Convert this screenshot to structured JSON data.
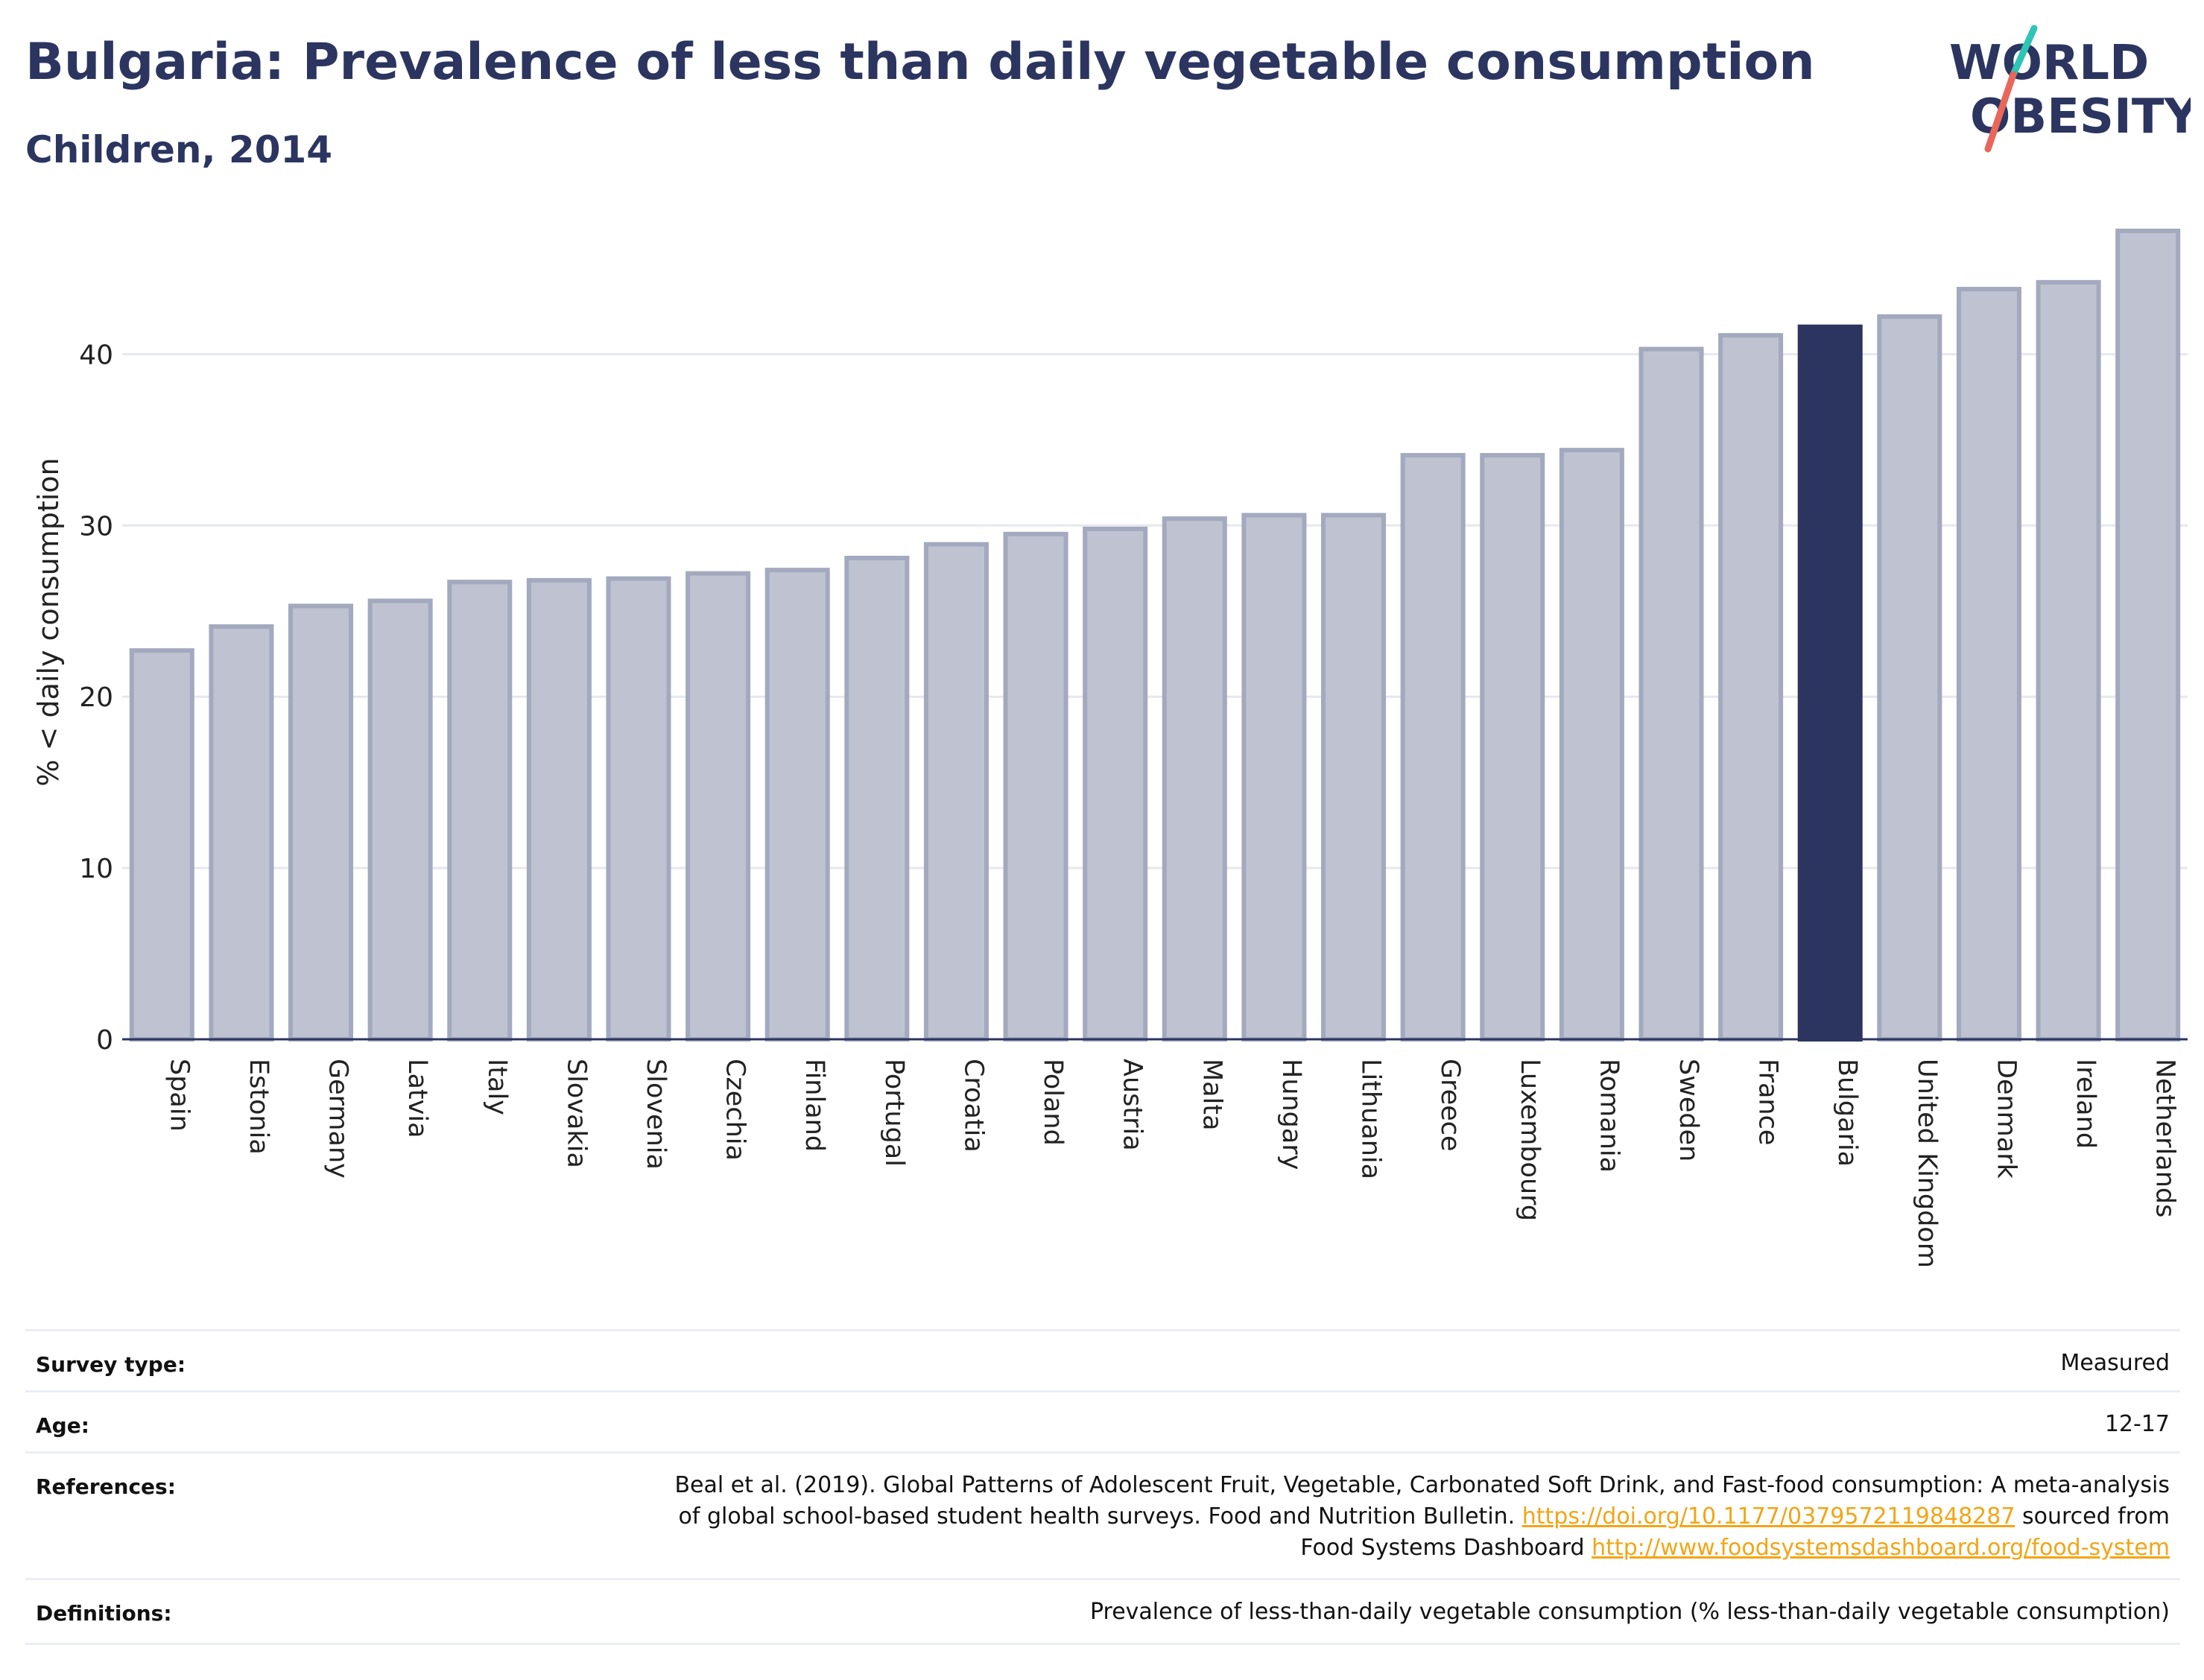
{
  "header": {
    "title": "Bulgaria: Prevalence of less than daily vegetable consumption",
    "subtitle": "Children, 2014"
  },
  "logo": {
    "line1": "WORLD",
    "line2": "OBESITY",
    "accent_colors": [
      "#2ec4b6",
      "#e8675a"
    ]
  },
  "chart_data": {
    "type": "bar",
    "title": "Bulgaria: Prevalence of less than daily vegetable consumption",
    "subtitle": "Children, 2014",
    "xlabel": "",
    "ylabel": "% < daily consumption",
    "ylim": [
      0,
      48.5
    ],
    "yticks": [
      0,
      10,
      20,
      30,
      40
    ],
    "grid": true,
    "highlight": "Bulgaria",
    "colors": {
      "bar": "#bfc2d0",
      "bar_border": "#a3a9be",
      "highlight": "#2b3560"
    },
    "categories": [
      "Spain",
      "Estonia",
      "Germany",
      "Latvia",
      "Italy",
      "Slovakia",
      "Slovenia",
      "Czechia",
      "Finland",
      "Portugal",
      "Croatia",
      "Poland",
      "Austria",
      "Malta",
      "Hungary",
      "Lithuania",
      "Greece",
      "Luxembourg",
      "Romania",
      "Sweden",
      "France",
      "Bulgaria",
      "United Kingdom",
      "Denmark",
      "Ireland",
      "Netherlands"
    ],
    "values": [
      22.7,
      24.1,
      25.3,
      25.6,
      26.7,
      26.8,
      26.9,
      27.2,
      27.4,
      28.1,
      28.9,
      29.5,
      29.8,
      30.4,
      30.6,
      30.6,
      34.1,
      34.1,
      34.4,
      40.3,
      41.1,
      41.6,
      42.2,
      43.8,
      44.2,
      47.2
    ]
  },
  "info": {
    "survey_type": {
      "label": "Survey type:",
      "value": "Measured"
    },
    "age": {
      "label": "Age:",
      "value": "12-17"
    },
    "references": {
      "label": "References:",
      "line1": "Beal et al. (2019). Global Patterns of Adolescent Fruit, Vegetable, Carbonated Soft Drink, and Fast-food consumption: A meta-analysis",
      "line2_prefix": "of global school-based student health surveys. Food and Nutrition Bulletin.",
      "link1": "https://doi.org/10.1177/0379572119848287",
      "line2_suffix": "sourced from",
      "line3_prefix": "Food Systems Dashboard",
      "link2": "http://www.foodsystemsdashboard.org/food-system"
    },
    "definitions": {
      "label": "Definitions:",
      "value": "Prevalence of less-than-daily vegetable consumption (% less-than-daily vegetable consumption)"
    }
  }
}
